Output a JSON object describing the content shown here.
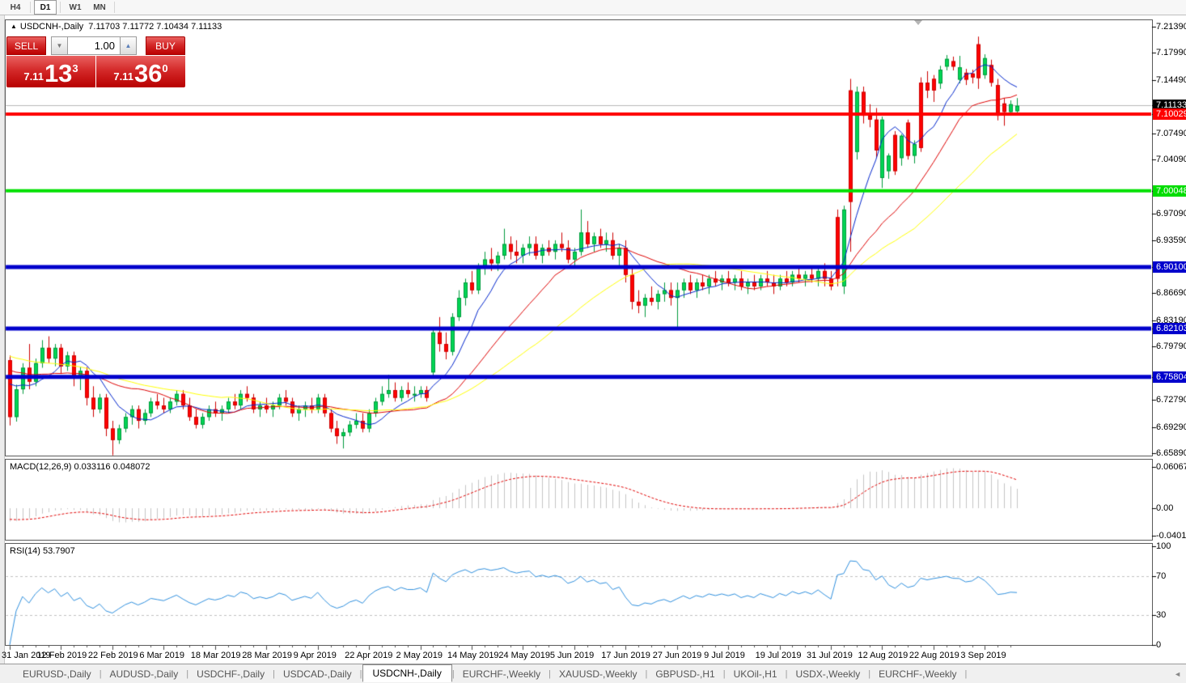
{
  "toolbar": {
    "timeframes": [
      {
        "label": "H4",
        "active": false
      },
      {
        "label": "D1",
        "active": true
      },
      {
        "label": "W1",
        "active": false
      },
      {
        "label": "MN",
        "active": false
      }
    ]
  },
  "chart": {
    "collapse_arrow": "▲",
    "title": "USDCNH-,Daily",
    "ohlc_text": "7.11703 7.11772 7.10434 7.11133",
    "trade_panel": {
      "sell_label": "SELL",
      "buy_label": "BUY",
      "volume": "1.00",
      "spin_down_icon": "▼",
      "spin_up_icon": "▲",
      "bid_small": "7.11",
      "bid_big": "13",
      "bid_sup": "3",
      "ask_small": "7.11",
      "ask_big": "36",
      "ask_sup": "0"
    },
    "macd_label": "MACD(12,26,9) 0.033116 0.048072",
    "rsi_label": "RSI(14) 53.7907"
  },
  "tabs": [
    {
      "label": "EURUSD-,Daily",
      "active": false
    },
    {
      "label": "AUDUSD-,Daily",
      "active": false
    },
    {
      "label": "USDCHF-,Daily",
      "active": false
    },
    {
      "label": "USDCAD-,Daily",
      "active": false
    },
    {
      "label": "USDCNH-,Daily",
      "active": true
    },
    {
      "label": "EURCHF-,Weekly",
      "active": false
    },
    {
      "label": "XAUUSD-,Weekly",
      "active": false
    },
    {
      "label": "GBPUSD-,H1",
      "active": false
    },
    {
      "label": "UKOil-,H1",
      "active": false
    },
    {
      "label": "USDX-,Weekly",
      "active": false
    },
    {
      "label": "EURCHF-,Weekly",
      "active": false
    }
  ],
  "tab_scroll_icon": "◄",
  "chart_data": {
    "type": "candlestick",
    "symbol": "USDCNH-",
    "timeframe": "Daily",
    "current_bar": {
      "open": 7.11703,
      "high": 7.11772,
      "low": 7.10434,
      "close": 7.11133
    },
    "y_range": [
      6.6589,
      7.2139
    ],
    "colors": {
      "up_fill": "#00d554",
      "up_stroke": "#009a3c",
      "down_fill": "#ff0000",
      "down_stroke": "#cc0000",
      "ma_fast": "#0026cc",
      "ma_mid": "#dd0000",
      "ma_slow": "#ffff00",
      "bid_line": "#b8b8b8",
      "macd_hist": "#c4c4c4",
      "macd_signal": "#e00000",
      "rsi_line": "#2f8fdd"
    },
    "price_ticks": [
      7.2139,
      7.1799,
      7.1449,
      7.0749,
      7.0409,
      6.9709,
      6.9359,
      6.8669,
      6.8319,
      6.7979,
      6.7279,
      6.6929,
      6.6589
    ],
    "badges": [
      {
        "value": 7.11133,
        "bg": "#000000",
        "name": "bid-price-badge"
      },
      {
        "value": 7.10029,
        "bg": "#ff0000",
        "name": "hline-badge"
      },
      {
        "value": 7.00048,
        "bg": "#00dd00",
        "name": "hline-badge"
      },
      {
        "value": 6.901,
        "bg": "#0000cc",
        "name": "hline-badge"
      },
      {
        "value": 6.82103,
        "bg": "#0000cc",
        "name": "hline-badge"
      },
      {
        "value": 6.75804,
        "bg": "#0000cc",
        "name": "hline-badge"
      }
    ],
    "hlines": [
      {
        "price": 7.10029,
        "color": "#ff0000",
        "width": 4
      },
      {
        "price": 7.00048,
        "color": "#00e000",
        "width": 4
      },
      {
        "price": 6.901,
        "color": "#0000cc",
        "width": 5
      },
      {
        "price": 6.82103,
        "color": "#0000cc",
        "width": 5
      },
      {
        "price": 6.75804,
        "color": "#0000cc",
        "width": 5
      }
    ],
    "bid_line_price": 7.11133,
    "ma_periods": {
      "fast": 8,
      "mid": 20,
      "slow": 34
    },
    "macd": {
      "params": "12,26,9",
      "value": 0.033116,
      "signal": 0.048072,
      "axis": [
        {
          "v": 0.060674,
          "label": "0.060674"
        },
        {
          "v": 0,
          "label": "0.00"
        },
        {
          "v": -0.040152,
          "label": "-0.040152"
        }
      ]
    },
    "rsi": {
      "period": 14,
      "value": 53.7907,
      "axis": [
        100,
        70,
        30,
        0
      ],
      "levels": [
        70,
        30
      ]
    },
    "date_ticks": [
      {
        "bar": 0,
        "label": "31 Jan 2019"
      },
      {
        "bar": 8,
        "label": "12 Feb 2019"
      },
      {
        "bar": 16,
        "label": "22 Feb 2019"
      },
      {
        "bar": 24,
        "label": "6 Mar 2019"
      },
      {
        "bar": 32,
        "label": "18 Mar 2019"
      },
      {
        "bar": 40,
        "label": "28 Mar 2019"
      },
      {
        "bar": 48,
        "label": "9 Apr 2019"
      },
      {
        "bar": 56,
        "label": "22 Apr 2019"
      },
      {
        "bar": 64,
        "label": "2 May 2019"
      },
      {
        "bar": 72,
        "label": "14 May 2019"
      },
      {
        "bar": 80,
        "label": "24 May 2019"
      },
      {
        "bar": 88,
        "label": "5 Jun 2019"
      },
      {
        "bar": 96,
        "label": "17 Jun 2019"
      },
      {
        "bar": 104,
        "label": "27 Jun 2019"
      },
      {
        "bar": 112,
        "label": "9 Jul 2019"
      },
      {
        "bar": 120,
        "label": "19 Jul 2019"
      },
      {
        "bar": 128,
        "label": "31 Jul 2019"
      },
      {
        "bar": 136,
        "label": "12 Aug 2019"
      },
      {
        "bar": 144,
        "label": "22 Aug 2019"
      },
      {
        "bar": 152,
        "label": "3 Sep 2019"
      }
    ],
    "candles": [
      [
        6.78,
        6.786,
        6.695,
        6.706
      ],
      [
        6.706,
        6.748,
        6.7,
        6.742
      ],
      [
        6.742,
        6.776,
        6.736,
        6.77
      ],
      [
        6.77,
        6.801,
        6.742,
        6.752
      ],
      [
        6.752,
        6.782,
        6.746,
        6.776
      ],
      [
        6.776,
        6.806,
        6.77,
        6.796
      ],
      [
        6.796,
        6.811,
        6.776,
        6.782
      ],
      [
        6.782,
        6.801,
        6.772,
        6.796
      ],
      [
        6.796,
        6.801,
        6.762,
        6.772
      ],
      [
        6.772,
        6.791,
        6.766,
        6.786
      ],
      [
        6.786,
        6.791,
        6.746,
        6.756
      ],
      [
        6.756,
        6.771,
        6.741,
        6.766
      ],
      [
        6.766,
        6.771,
        6.721,
        6.731
      ],
      [
        6.731,
        6.746,
        6.706,
        6.716
      ],
      [
        6.716,
        6.736,
        6.711,
        6.731
      ],
      [
        6.731,
        6.736,
        6.681,
        6.691
      ],
      [
        6.691,
        6.701,
        6.656,
        6.676
      ],
      [
        6.676,
        6.696,
        6.671,
        6.691
      ],
      [
        6.691,
        6.711,
        6.686,
        6.706
      ],
      [
        6.706,
        6.721,
        6.696,
        6.716
      ],
      [
        6.716,
        6.721,
        6.691,
        6.701
      ],
      [
        6.701,
        6.716,
        6.696,
        6.711
      ],
      [
        6.711,
        6.731,
        6.706,
        6.726
      ],
      [
        6.726,
        6.736,
        6.716,
        6.721
      ],
      [
        6.721,
        6.731,
        6.711,
        6.716
      ],
      [
        6.716,
        6.731,
        6.711,
        6.726
      ],
      [
        6.726,
        6.741,
        6.721,
        6.736
      ],
      [
        6.736,
        6.741,
        6.716,
        6.721
      ],
      [
        6.721,
        6.731,
        6.701,
        6.706
      ],
      [
        6.706,
        6.716,
        6.691,
        6.696
      ],
      [
        6.696,
        6.711,
        6.691,
        6.706
      ],
      [
        6.706,
        6.721,
        6.701,
        6.716
      ],
      [
        6.716,
        6.726,
        6.706,
        6.711
      ],
      [
        6.711,
        6.721,
        6.701,
        6.716
      ],
      [
        6.716,
        6.731,
        6.711,
        6.726
      ],
      [
        6.726,
        6.736,
        6.716,
        6.721
      ],
      [
        6.721,
        6.741,
        6.716,
        6.736
      ],
      [
        6.736,
        6.746,
        6.726,
        6.731
      ],
      [
        6.731,
        6.736,
        6.711,
        6.716
      ],
      [
        6.716,
        6.726,
        6.706,
        6.721
      ],
      [
        6.721,
        6.731,
        6.711,
        6.716
      ],
      [
        6.716,
        6.726,
        6.706,
        6.721
      ],
      [
        6.721,
        6.736,
        6.716,
        6.731
      ],
      [
        6.731,
        6.741,
        6.721,
        6.726
      ],
      [
        6.726,
        6.731,
        6.706,
        6.711
      ],
      [
        6.711,
        6.721,
        6.701,
        6.716
      ],
      [
        6.716,
        6.726,
        6.706,
        6.721
      ],
      [
        6.721,
        6.731,
        6.711,
        6.716
      ],
      [
        6.716,
        6.736,
        6.711,
        6.731
      ],
      [
        6.731,
        6.736,
        6.706,
        6.711
      ],
      [
        6.711,
        6.716,
        6.686,
        6.691
      ],
      [
        6.691,
        6.701,
        6.671,
        6.681
      ],
      [
        6.681,
        6.691,
        6.665,
        6.686
      ],
      [
        6.686,
        6.701,
        6.681,
        6.696
      ],
      [
        6.696,
        6.711,
        6.691,
        6.701
      ],
      [
        6.701,
        6.711,
        6.686,
        6.691
      ],
      [
        6.691,
        6.716,
        6.686,
        6.711
      ],
      [
        6.711,
        6.731,
        6.706,
        6.726
      ],
      [
        6.726,
        6.746,
        6.721,
        6.736
      ],
      [
        6.736,
        6.761,
        6.731,
        6.741
      ],
      [
        6.741,
        6.751,
        6.726,
        6.731
      ],
      [
        6.731,
        6.746,
        6.726,
        6.741
      ],
      [
        6.741,
        6.751,
        6.731,
        6.736
      ],
      [
        6.736,
        6.746,
        6.726,
        6.736
      ],
      [
        6.736,
        6.746,
        6.731,
        6.741
      ],
      [
        6.741,
        6.746,
        6.726,
        6.731
      ],
      [
        6.764,
        6.821,
        6.759,
        6.816
      ],
      [
        6.816,
        6.836,
        6.791,
        6.801
      ],
      [
        6.801,
        6.816,
        6.781,
        6.791
      ],
      [
        6.791,
        6.841,
        6.786,
        6.836
      ],
      [
        6.836,
        6.871,
        6.831,
        6.861
      ],
      [
        6.861,
        6.886,
        6.851,
        6.881
      ],
      [
        6.881,
        6.896,
        6.866,
        6.871
      ],
      [
        6.871,
        6.906,
        6.866,
        6.901
      ],
      [
        6.901,
        6.921,
        6.891,
        6.911
      ],
      [
        6.911,
        6.926,
        6.896,
        6.906
      ],
      [
        6.906,
        6.921,
        6.896,
        6.916
      ],
      [
        6.916,
        6.951,
        6.911,
        6.931
      ],
      [
        6.931,
        6.941,
        6.911,
        6.921
      ],
      [
        6.921,
        6.936,
        6.906,
        6.916
      ],
      [
        6.916,
        6.931,
        6.906,
        6.926
      ],
      [
        6.926,
        6.941,
        6.916,
        6.931
      ],
      [
        6.931,
        6.941,
        6.911,
        6.916
      ],
      [
        6.916,
        6.931,
        6.906,
        6.926
      ],
      [
        6.926,
        6.936,
        6.916,
        6.921
      ],
      [
        6.921,
        6.936,
        6.911,
        6.931
      ],
      [
        6.931,
        6.946,
        6.921,
        6.926
      ],
      [
        6.926,
        6.936,
        6.906,
        6.911
      ],
      [
        6.911,
        6.926,
        6.901,
        6.921
      ],
      [
        6.921,
        6.976,
        6.916,
        6.946
      ],
      [
        6.946,
        6.961,
        6.926,
        6.931
      ],
      [
        6.931,
        6.946,
        6.921,
        6.941
      ],
      [
        6.941,
        6.951,
        6.926,
        6.931
      ],
      [
        6.931,
        6.946,
        6.921,
        6.936
      ],
      [
        6.936,
        6.946,
        6.911,
        6.916
      ],
      [
        6.916,
        6.931,
        6.901,
        6.926
      ],
      [
        6.926,
        6.936,
        6.881,
        6.891
      ],
      [
        6.891,
        6.901,
        6.846,
        6.856
      ],
      [
        6.856,
        6.871,
        6.841,
        6.851
      ],
      [
        6.851,
        6.866,
        6.836,
        6.861
      ],
      [
        6.861,
        6.876,
        6.851,
        6.856
      ],
      [
        6.856,
        6.871,
        6.846,
        6.866
      ],
      [
        6.866,
        6.881,
        6.856,
        6.871
      ],
      [
        6.871,
        6.881,
        6.851,
        6.861
      ],
      [
        6.861,
        6.881,
        6.822,
        6.871
      ],
      [
        6.871,
        6.886,
        6.861,
        6.881
      ],
      [
        6.881,
        6.891,
        6.866,
        6.871
      ],
      [
        6.871,
        6.886,
        6.861,
        6.881
      ],
      [
        6.881,
        6.891,
        6.871,
        6.876
      ],
      [
        6.876,
        6.891,
        6.866,
        6.886
      ],
      [
        6.886,
        6.896,
        6.876,
        6.881
      ],
      [
        6.881,
        6.891,
        6.871,
        6.886
      ],
      [
        6.886,
        6.896,
        6.876,
        6.881
      ],
      [
        6.881,
        6.891,
        6.871,
        6.886
      ],
      [
        6.886,
        6.896,
        6.871,
        6.876
      ],
      [
        6.876,
        6.886,
        6.866,
        6.881
      ],
      [
        6.881,
        6.891,
        6.871,
        6.876
      ],
      [
        6.876,
        6.891,
        6.871,
        6.886
      ],
      [
        6.886,
        6.896,
        6.876,
        6.881
      ],
      [
        6.881,
        6.891,
        6.866,
        6.876
      ],
      [
        6.876,
        6.891,
        6.871,
        6.886
      ],
      [
        6.886,
        6.896,
        6.876,
        6.881
      ],
      [
        6.881,
        6.896,
        6.876,
        6.891
      ],
      [
        6.891,
        6.901,
        6.881,
        6.886
      ],
      [
        6.886,
        6.896,
        6.876,
        6.891
      ],
      [
        6.891,
        6.901,
        6.881,
        6.886
      ],
      [
        6.886,
        6.901,
        6.876,
        6.896
      ],
      [
        6.896,
        6.906,
        6.876,
        6.886
      ],
      [
        6.886,
        6.896,
        6.871,
        6.876
      ],
      [
        6.886,
        6.976,
        6.876,
        6.966,
        "r"
      ],
      [
        6.876,
        6.981,
        6.866,
        6.976
      ],
      [
        6.986,
        7.146,
        6.921,
        7.131,
        "r"
      ],
      [
        7.051,
        7.136,
        7.041,
        7.129
      ],
      [
        7.129,
        7.136,
        7.088,
        7.098
      ],
      [
        7.098,
        7.113,
        7.083,
        7.093
      ],
      [
        7.093,
        7.108,
        7.043,
        7.053
      ],
      [
        7.017,
        7.097,
        7.004,
        7.093
      ],
      [
        7.026,
        7.049,
        7.016,
        7.046
      ],
      [
        7.073,
        7.078,
        7.021,
        7.026
      ],
      [
        7.043,
        7.074,
        7.033,
        7.072
      ],
      [
        7.089,
        7.093,
        7.041,
        7.046
      ],
      [
        7.046,
        7.066,
        7.036,
        7.061
      ],
      [
        7.056,
        7.148,
        7.051,
        7.141,
        "r"
      ],
      [
        7.141,
        7.156,
        7.121,
        7.131
      ],
      [
        7.131,
        7.151,
        7.116,
        7.146,
        "r"
      ],
      [
        7.14,
        7.163,
        7.133,
        7.158
      ],
      [
        7.162,
        7.177,
        7.157,
        7.172
      ],
      [
        7.169,
        7.175,
        7.157,
        7.162
      ],
      [
        7.145,
        7.176,
        7.14,
        7.161
      ],
      [
        7.154,
        7.159,
        7.138,
        7.145
      ],
      [
        7.148,
        7.158,
        7.14,
        7.153,
        "r"
      ],
      [
        7.147,
        7.201,
        7.133,
        7.191,
        "r"
      ],
      [
        7.151,
        7.178,
        7.146,
        7.173
      ],
      [
        7.164,
        7.171,
        7.136,
        7.141
      ],
      [
        7.138,
        7.146,
        7.092,
        7.098
      ],
      [
        7.114,
        7.121,
        7.085,
        7.103
      ],
      [
        7.103,
        7.118,
        7.098,
        7.113
      ],
      [
        7.104,
        7.121,
        7.099,
        7.111
      ]
    ]
  }
}
